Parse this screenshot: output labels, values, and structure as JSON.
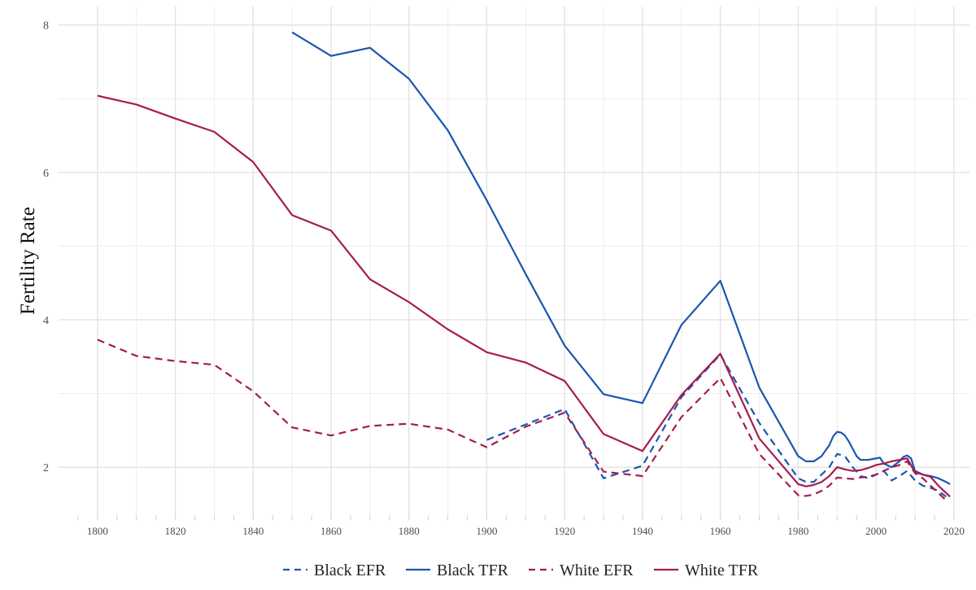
{
  "chart_data": {
    "type": "line",
    "title": "",
    "xlabel": "",
    "ylabel": "Fertility Rate",
    "xlim": [
      1790,
      2024
    ],
    "ylim": [
      1.35,
      8.25
    ],
    "x_ticks": [
      1800,
      1820,
      1840,
      1860,
      1880,
      1900,
      1920,
      1940,
      1960,
      1980,
      2000,
      2020
    ],
    "x_tick_labels": [
      "1800",
      "1820",
      "1840",
      "1860",
      "1880",
      "1900",
      "1920",
      "1940",
      "1960",
      "1980",
      "2000",
      "2020"
    ],
    "y_ticks": [
      2,
      4,
      6,
      8
    ],
    "y_tick_labels": [
      "2",
      "4",
      "6",
      "8"
    ],
    "grid": true,
    "legend_position": "bottom",
    "series": [
      {
        "name": "Black EFR",
        "color": "#1a56b0",
        "dash": "dashed",
        "x": [
          1900,
          1910,
          1920,
          1930,
          1940,
          1950,
          1960,
          1970,
          1980,
          1982,
          1984,
          1986,
          1988,
          1990,
          1992,
          1994,
          1996,
          1998,
          2000,
          2002,
          2004,
          2006,
          2008,
          2010,
          2012,
          2014,
          2016,
          2018
        ],
        "y": [
          2.37,
          2.58,
          2.79,
          1.85,
          2.02,
          2.95,
          3.53,
          2.6,
          1.85,
          1.8,
          1.8,
          1.9,
          2.0,
          2.18,
          2.15,
          2.0,
          1.88,
          1.85,
          1.9,
          1.95,
          1.82,
          1.88,
          1.95,
          1.82,
          1.75,
          1.72,
          1.68,
          1.6
        ]
      },
      {
        "name": "Black TFR",
        "color": "#1a56b0",
        "dash": "solid",
        "x": [
          1850,
          1860,
          1870,
          1880,
          1890,
          1900,
          1910,
          1920,
          1930,
          1940,
          1950,
          1960,
          1970,
          1980,
          1982,
          1984,
          1986,
          1988,
          1989,
          1990,
          1991,
          1992,
          1993,
          1994,
          1995,
          1996,
          1998,
          2000,
          2001,
          2002,
          2004,
          2006,
          2007,
          2008,
          2009,
          2010,
          2012,
          2014,
          2016,
          2018,
          2019
        ],
        "y": [
          7.9,
          7.58,
          7.69,
          7.27,
          6.57,
          5.62,
          4.62,
          3.65,
          2.99,
          2.87,
          3.93,
          4.53,
          3.08,
          2.15,
          2.08,
          2.08,
          2.15,
          2.3,
          2.42,
          2.48,
          2.47,
          2.43,
          2.35,
          2.25,
          2.15,
          2.1,
          2.1,
          2.12,
          2.13,
          2.05,
          2.0,
          2.08,
          2.14,
          2.16,
          2.12,
          1.95,
          1.9,
          1.88,
          1.85,
          1.8,
          1.77
        ]
      },
      {
        "name": "White EFR",
        "color": "#a51c4f",
        "dash": "dashed",
        "x": [
          1800,
          1810,
          1820,
          1830,
          1840,
          1850,
          1860,
          1870,
          1880,
          1890,
          1900,
          1910,
          1920,
          1930,
          1940,
          1950,
          1960,
          1970,
          1980,
          1982,
          1984,
          1986,
          1988,
          1990,
          1992,
          1994,
          1996,
          1998,
          2000,
          2002,
          2004,
          2006,
          2008,
          2010,
          2012,
          2014,
          2016,
          2018
        ],
        "y": [
          3.73,
          3.51,
          3.44,
          3.39,
          3.03,
          2.54,
          2.43,
          2.56,
          2.59,
          2.51,
          2.27,
          2.55,
          2.74,
          1.94,
          1.88,
          2.68,
          3.21,
          2.18,
          1.62,
          1.61,
          1.63,
          1.68,
          1.75,
          1.86,
          1.85,
          1.84,
          1.86,
          1.87,
          1.9,
          1.95,
          2.0,
          2.03,
          2.08,
          1.92,
          1.85,
          1.75,
          1.65,
          1.55
        ]
      },
      {
        "name": "White TFR",
        "color": "#a51c4f",
        "dash": "solid",
        "x": [
          1800,
          1810,
          1820,
          1830,
          1840,
          1850,
          1860,
          1870,
          1880,
          1890,
          1900,
          1910,
          1920,
          1930,
          1940,
          1950,
          1960,
          1970,
          1980,
          1982,
          1984,
          1986,
          1988,
          1990,
          1992,
          1994,
          1996,
          1998,
          2000,
          2002,
          2004,
          2006,
          2008,
          2010,
          2012,
          2014,
          2016,
          2018,
          2019
        ],
        "y": [
          7.04,
          6.92,
          6.73,
          6.55,
          6.14,
          5.42,
          5.21,
          4.55,
          4.24,
          3.87,
          3.56,
          3.42,
          3.17,
          2.45,
          2.22,
          2.98,
          3.54,
          2.39,
          1.77,
          1.74,
          1.76,
          1.8,
          1.88,
          2.0,
          1.97,
          1.95,
          1.96,
          1.99,
          2.03,
          2.05,
          2.08,
          2.1,
          2.12,
          1.93,
          1.9,
          1.87,
          1.75,
          1.65,
          1.6
        ]
      }
    ]
  }
}
